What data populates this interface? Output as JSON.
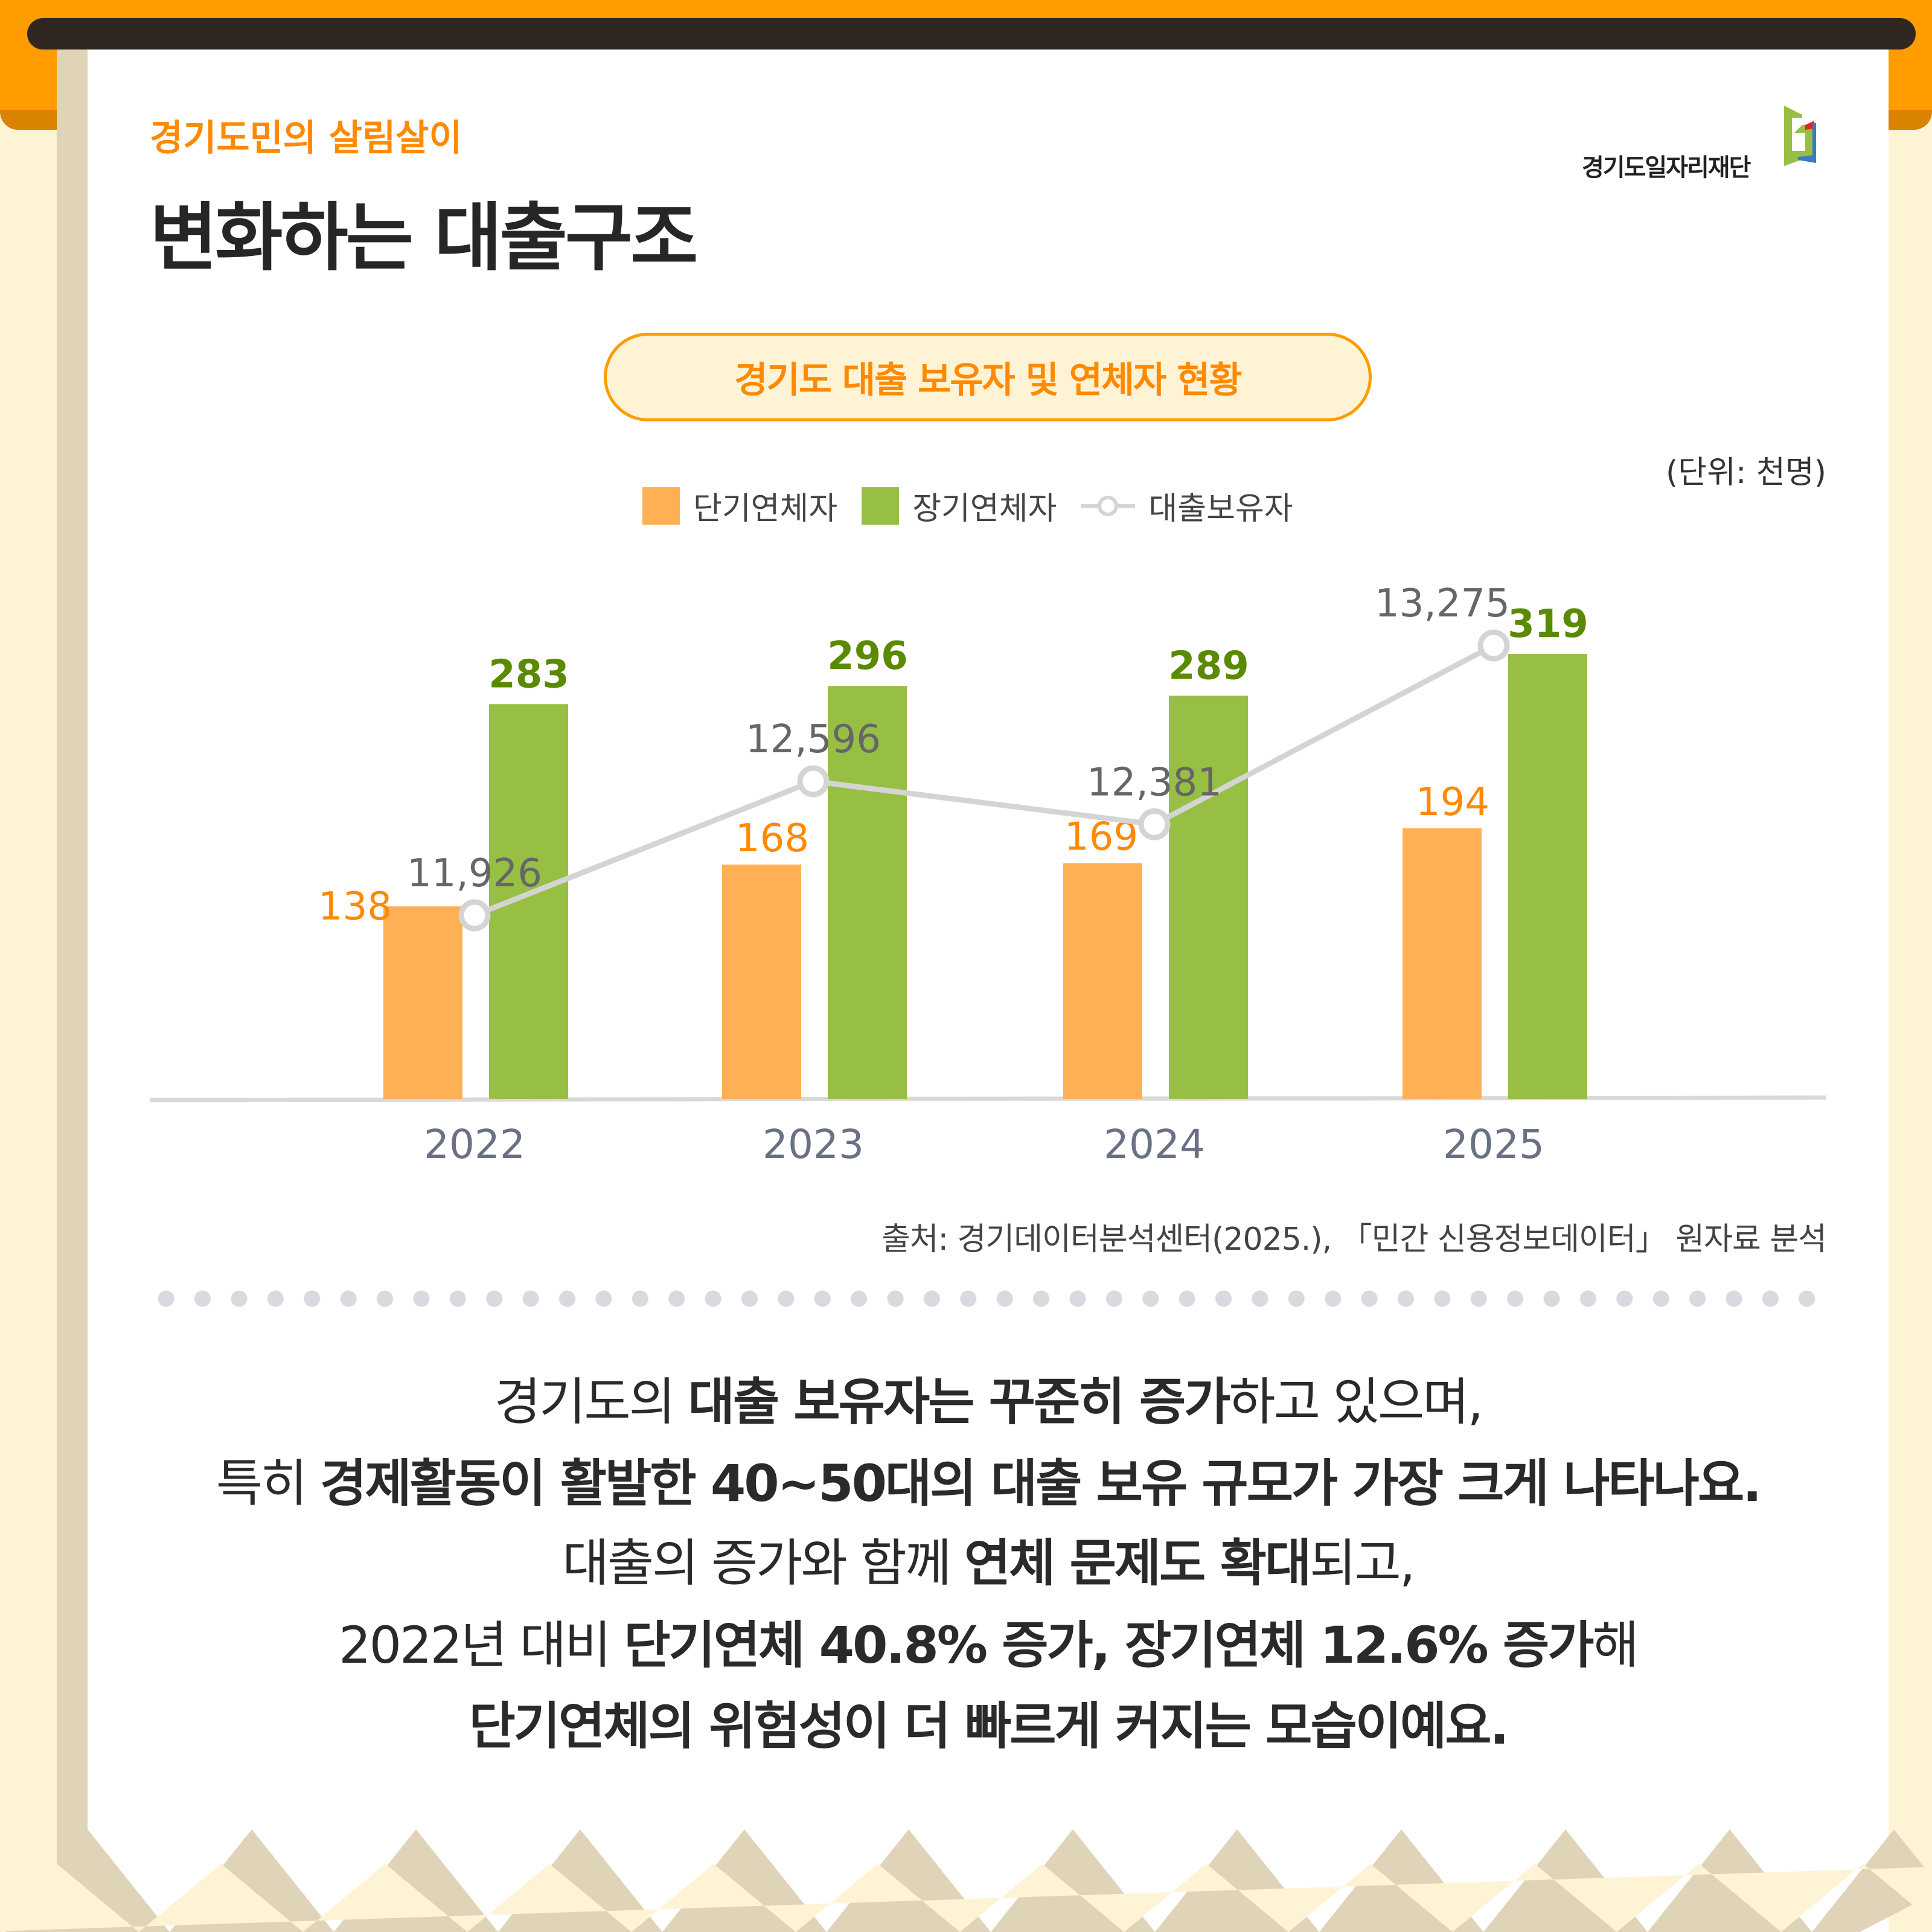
{
  "header": {
    "subtitle": "경기도민의 살림살이",
    "title": "변화하는 대출구조",
    "logo_text": "경기도일자리재단"
  },
  "chart_title": "경기도  대출 보유자 및 연체자 현황",
  "unit": "(단위: 천명)",
  "source": "출처: 경기데이터분석센터(2025.), 「민간 신용정보데이터」 원자료 분석",
  "colors": {
    "short": "#FFB055",
    "long": "#96BF43",
    "line": "#D4D4D4",
    "accent": "#FF8A00",
    "short_label": "#FF8A00",
    "long_label": "#5A8A00"
  },
  "chart_data": {
    "type": "bar",
    "categories": [
      "2022",
      "2023",
      "2024",
      "2025"
    ],
    "series": [
      {
        "name": "단기연체자",
        "type": "bar",
        "values": [
          138,
          168,
          169,
          194
        ]
      },
      {
        "name": "장기연체자",
        "type": "bar",
        "values": [
          283,
          296,
          289,
          319
        ]
      },
      {
        "name": "대출보유자",
        "type": "line",
        "values": [
          11926,
          12596,
          12381,
          13275
        ]
      }
    ],
    "value_labels": {
      "short": [
        "138",
        "168",
        "169",
        "194"
      ],
      "long": [
        "283",
        "296",
        "289",
        "319"
      ],
      "line": [
        "11,926",
        "12,596",
        "12,381",
        "13,275"
      ]
    },
    "legend_placement": "top",
    "grid": false
  },
  "paragraph": [
    [
      {
        "t": "경기도의 ",
        "b": false
      },
      {
        "t": "대출 보유자는 꾸준히 증가",
        "b": true
      },
      {
        "t": "하고 있으며,",
        "b": false
      }
    ],
    [
      {
        "t": "특히 ",
        "b": false
      },
      {
        "t": "경제활동이 활발한 40~50대의 대출 보유 규모가 가장 크게 나타나요.",
        "b": true
      }
    ],
    [
      {
        "t": "대출의 증가와 함께 ",
        "b": false
      },
      {
        "t": "연체 문제도 확대",
        "b": true
      },
      {
        "t": "되고,",
        "b": false
      }
    ],
    [
      {
        "t": "2022년 대비 ",
        "b": false
      },
      {
        "t": "단기연체 40.8% 증가, 장기연체 12.6% 증가",
        "b": true
      },
      {
        "t": "해",
        "b": false
      }
    ],
    [
      {
        "t": "단기연체의 위험성이 더 빠르게 커지는 모습이예요.",
        "b": true
      }
    ]
  ]
}
